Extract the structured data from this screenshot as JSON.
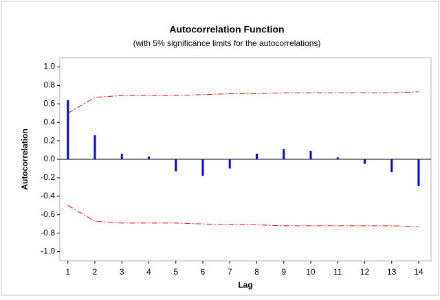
{
  "chart_data": {
    "type": "acf",
    "title": "Autocorrelation Function",
    "subtitle": "(with 5% significance limits for the autocorrelations)",
    "x_label": "Lag",
    "y_label": "Autocorrelation",
    "x": [
      1,
      2,
      3,
      4,
      5,
      6,
      7,
      8,
      9,
      10,
      11,
      12,
      13,
      14
    ],
    "values": [
      0.64,
      0.26,
      0.06,
      0.03,
      -0.13,
      -0.18,
      -0.1,
      0.06,
      0.11,
      0.09,
      0.02,
      -0.05,
      -0.14,
      -0.29
    ],
    "color": "#0000ff",
    "upper_limits": [
      0.5,
      0.67,
      0.69,
      0.69,
      0.69,
      0.7,
      0.71,
      0.71,
      0.72,
      0.72,
      0.72,
      0.72,
      0.72,
      0.73
    ],
    "lower_limits": [
      -0.5,
      -0.67,
      -0.69,
      -0.69,
      -0.69,
      -0.7,
      -0.71,
      -0.71,
      -0.72,
      -0.72,
      -0.72,
      -0.72,
      -0.72,
      -0.73
    ],
    "limit_color": "#ff0000",
    "xlim": [
      0.7,
      14.46
    ],
    "ylim": [
      -1.1,
      1.1
    ],
    "xticks": [
      1,
      2,
      3,
      4,
      5,
      6,
      7,
      8,
      9,
      10,
      11,
      12,
      13,
      14
    ],
    "yticks": [
      {
        "value": 1,
        "label": "1.0"
      },
      0.8,
      0.6,
      0.4,
      0.2,
      {
        "value": 0,
        "label": "0.0"
      },
      -0.2,
      -0.4,
      -0.6,
      -0.8,
      {
        "value": -1,
        "label": "-1.0"
      }
    ]
  }
}
